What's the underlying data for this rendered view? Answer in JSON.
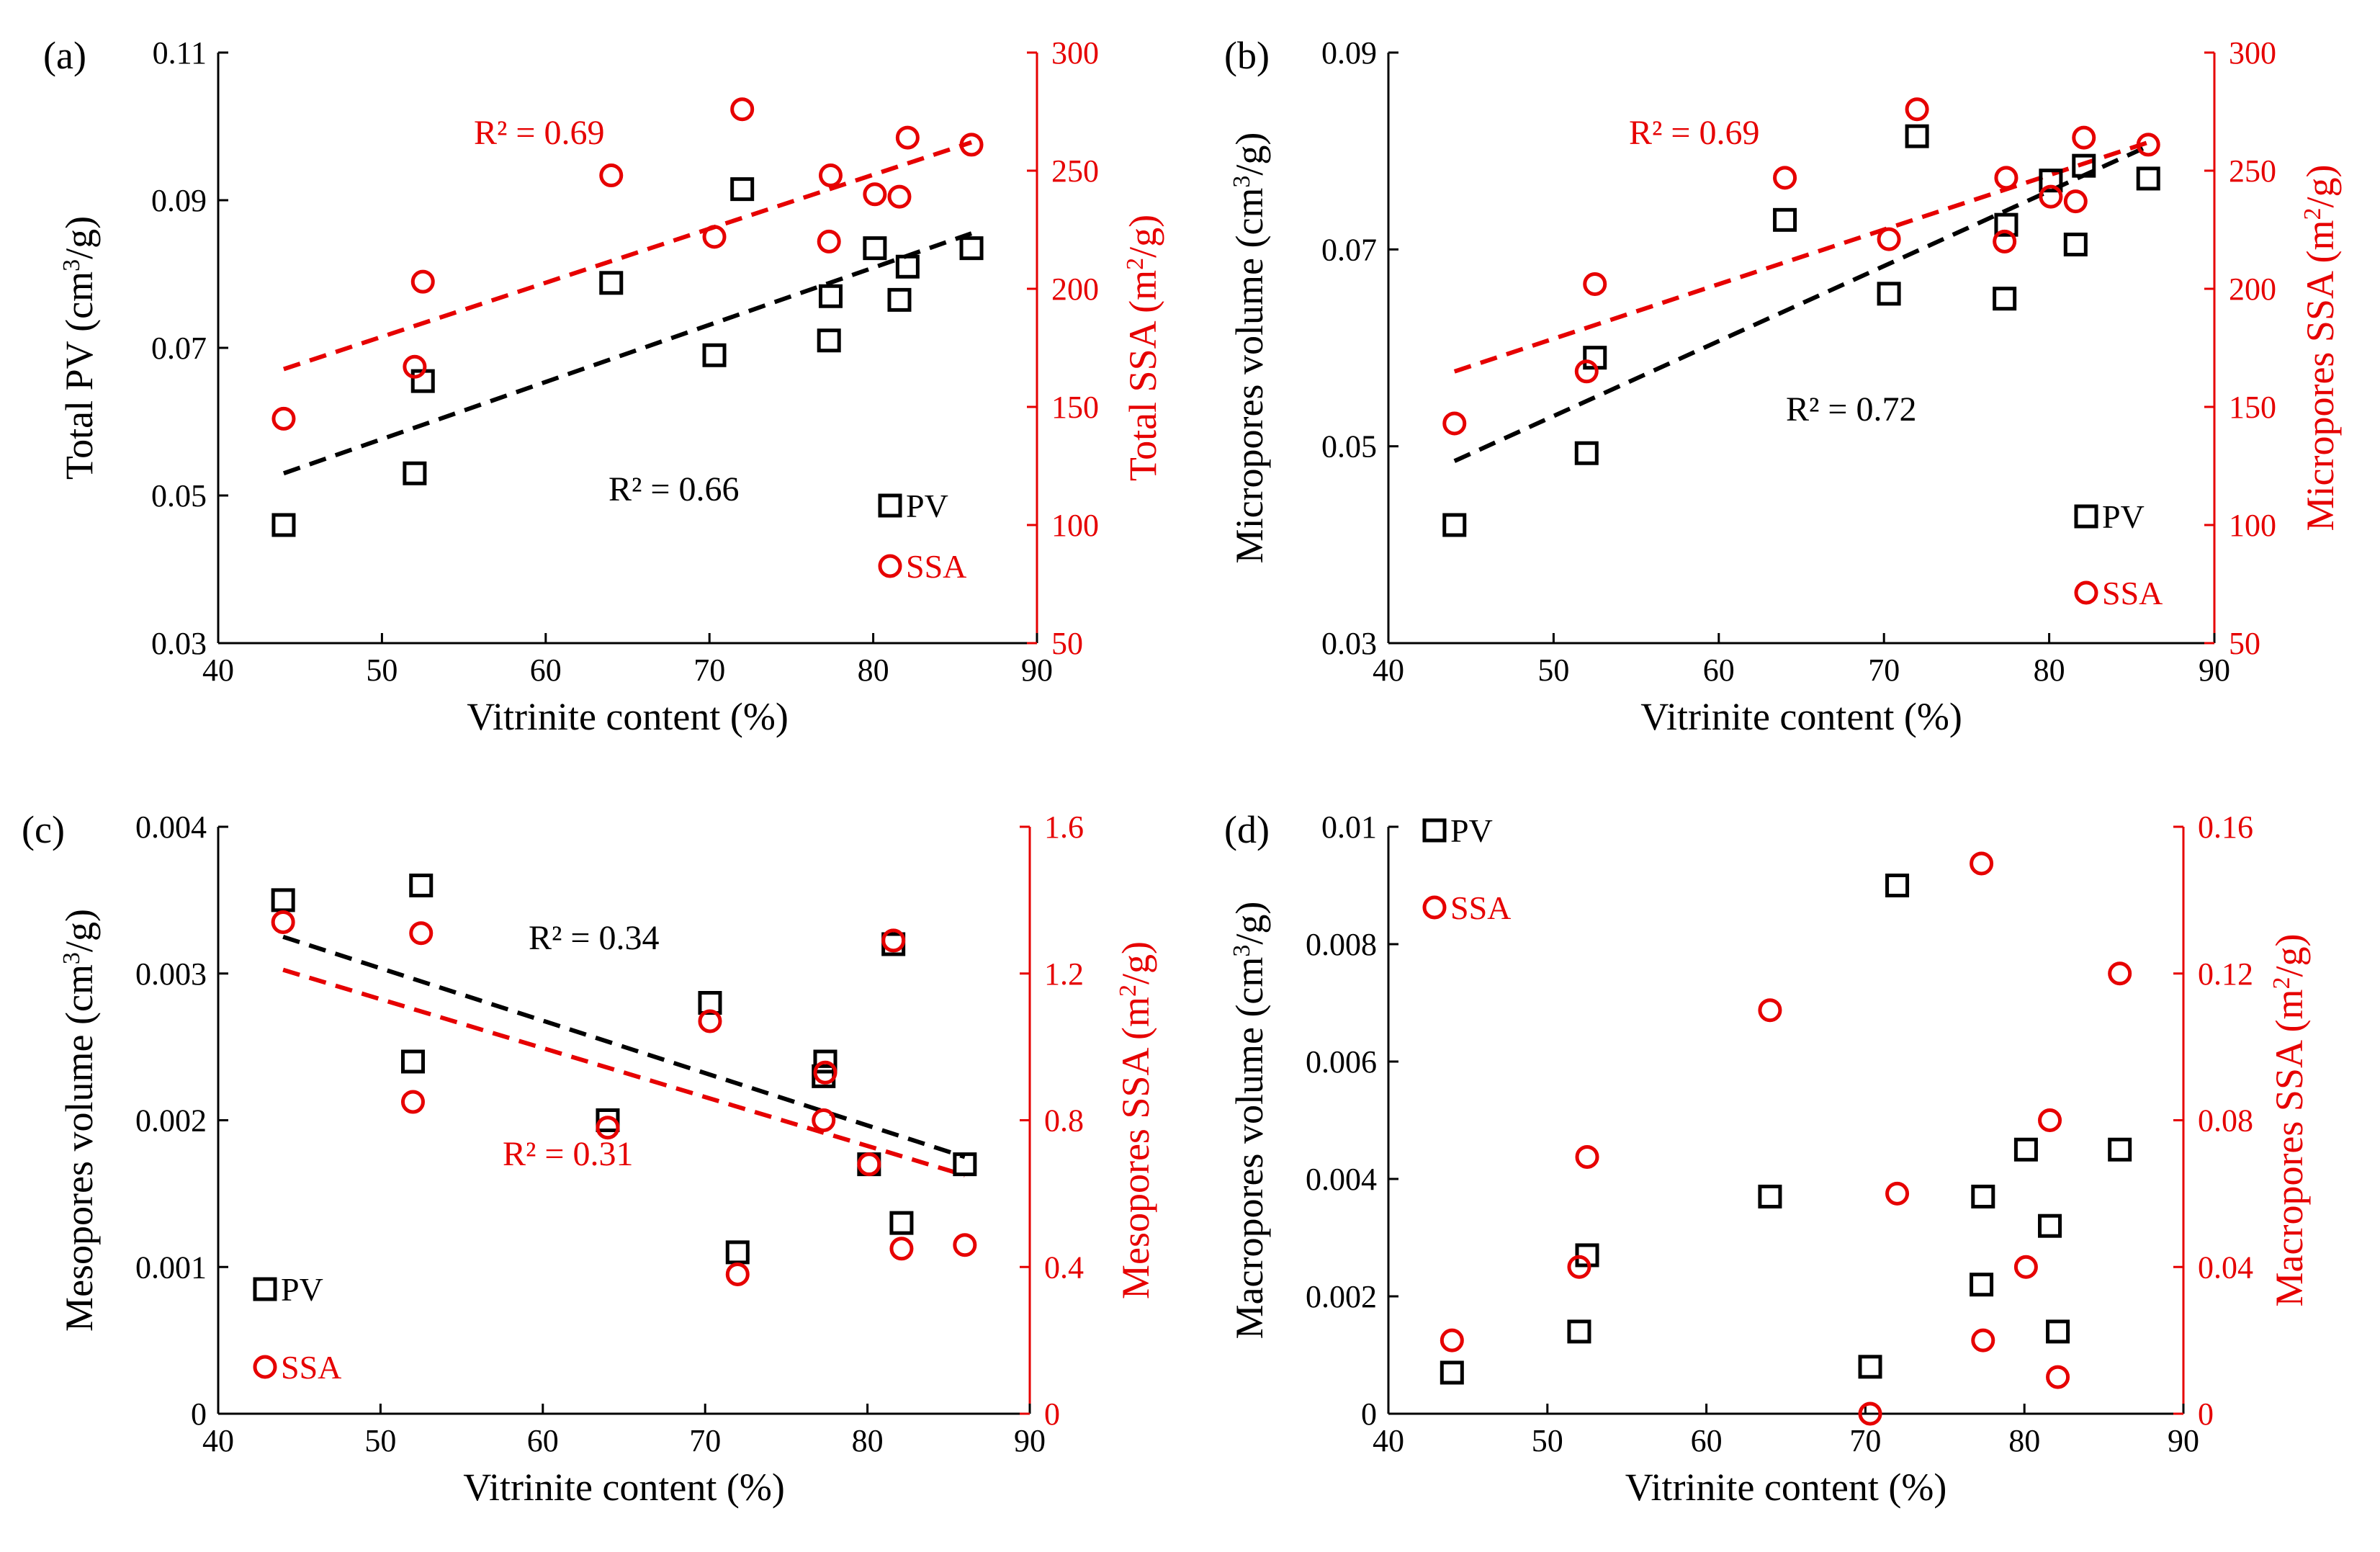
{
  "colors": {
    "pv": "#000000",
    "ssa": "#e60000",
    "axis": "#000000"
  },
  "chart_data": [
    {
      "type": "scatter",
      "panel_label": "(a)",
      "xlabel": "Vitrinite content (%)",
      "ylabel": "Total PV (cm³/g)",
      "ylabel_right": "Total SSA (m²/g)",
      "xlim": [
        40,
        90
      ],
      "ylim": [
        0.03,
        0.11
      ],
      "ylim_right": [
        50,
        300
      ],
      "x_ticks": [
        "40",
        "50",
        "60",
        "70",
        "80",
        "90"
      ],
      "y_ticks": [
        "0.03",
        "0.05",
        "0.07",
        "0.09",
        "0.11"
      ],
      "y_ticks_right": [
        "50",
        "100",
        "150",
        "200",
        "250",
        "300"
      ],
      "series": [
        {
          "name": "PV",
          "axis": "left",
          "marker": "square",
          "x": [
            44,
            52,
            52.5,
            64,
            70.3,
            72,
            77.3,
            77.4,
            80.1,
            81.6,
            82.1,
            86
          ],
          "y": [
            0.046,
            0.053,
            0.0655,
            0.0788,
            0.069,
            0.0915,
            0.071,
            0.077,
            0.0835,
            0.0765,
            0.081,
            0.0835
          ]
        },
        {
          "name": "SSA",
          "axis": "right",
          "marker": "circle",
          "x": [
            44,
            52,
            52.5,
            64,
            70.3,
            72,
            77.3,
            77.4,
            80.1,
            81.6,
            82.1,
            86
          ],
          "y": [
            145,
            167,
            203,
            248,
            222,
            276,
            220,
            248,
            240,
            239,
            264,
            261
          ]
        }
      ],
      "trendlines": [
        {
          "series": "PV",
          "axis": "left",
          "x": [
            44,
            86
          ],
          "y": [
            0.053,
            0.0855
          ],
          "r2_label": "R² = 0.66"
        },
        {
          "series": "SSA",
          "axis": "right",
          "x": [
            44,
            86
          ],
          "y": [
            166,
            262
          ],
          "r2_label": "R² = 0.69"
        }
      ],
      "legend": [
        "PV",
        "SSA"
      ],
      "legend_position": "lower-right"
    },
    {
      "type": "scatter",
      "panel_label": "(b)",
      "xlabel": "Vitrinite content (%)",
      "ylabel": "Micropores volume (cm³/g)",
      "ylabel_right": "Micropores SSA (m²/g)",
      "xlim": [
        40,
        90
      ],
      "ylim": [
        0.03,
        0.09
      ],
      "ylim_right": [
        50,
        300
      ],
      "x_ticks": [
        "40",
        "50",
        "60",
        "70",
        "80",
        "90"
      ],
      "y_ticks": [
        "0.03",
        "0.05",
        "0.07",
        "0.09"
      ],
      "y_ticks_right": [
        "50",
        "100",
        "150",
        "200",
        "250",
        "300"
      ],
      "series": [
        {
          "name": "PV",
          "axis": "left",
          "marker": "square",
          "x": [
            44,
            52,
            52.5,
            64,
            70.3,
            72,
            77.3,
            77.4,
            80.1,
            81.6,
            82.1,
            86
          ],
          "y": [
            0.042,
            0.0493,
            0.059,
            0.073,
            0.0655,
            0.0815,
            0.065,
            0.0725,
            0.077,
            0.0705,
            0.0785,
            0.0772
          ]
        },
        {
          "name": "SSA",
          "axis": "right",
          "marker": "circle",
          "x": [
            44,
            52,
            52.5,
            64,
            70.3,
            72,
            77.3,
            77.4,
            80.1,
            81.6,
            82.1,
            86
          ],
          "y": [
            143,
            165,
            202,
            247,
            221,
            276,
            220,
            247,
            239,
            237,
            264,
            261
          ]
        }
      ],
      "trendlines": [
        {
          "series": "PV",
          "axis": "left",
          "x": [
            44,
            86
          ],
          "y": [
            0.0485,
            0.0805
          ],
          "r2_label": "R² = 0.72"
        },
        {
          "series": "SSA",
          "axis": "right",
          "x": [
            44,
            86
          ],
          "y": [
            165,
            262
          ],
          "r2_label": "R² = 0.69"
        }
      ],
      "legend": [
        "PV",
        "SSA"
      ],
      "legend_position": "lower-right"
    },
    {
      "type": "scatter",
      "panel_label": "(c)",
      "xlabel": "Vitrinite content (%)",
      "ylabel": "Mesopores volume (cm³/g)",
      "ylabel_right": "Mesopores SSA (m²/g)",
      "xlim": [
        40,
        90
      ],
      "ylim": [
        0,
        0.004
      ],
      "ylim_right": [
        0,
        1.6
      ],
      "x_ticks": [
        "40",
        "50",
        "60",
        "70",
        "80",
        "90"
      ],
      "y_ticks": [
        "0",
        "0.001",
        "0.002",
        "0.003",
        "0.004"
      ],
      "y_ticks_right": [
        "0",
        "0.4",
        "0.8",
        "1.2",
        "1.6"
      ],
      "series": [
        {
          "name": "PV",
          "axis": "left",
          "marker": "square",
          "x": [
            44,
            52,
            52.5,
            64,
            70.3,
            72,
            77.3,
            77.4,
            80.1,
            81.6,
            82.1,
            86
          ],
          "y": [
            0.0035,
            0.0024,
            0.0036,
            0.002,
            0.0028,
            0.0011,
            0.0023,
            0.0024,
            0.0017,
            0.0032,
            0.0013,
            0.0017
          ]
        },
        {
          "name": "SSA",
          "axis": "right",
          "marker": "circle",
          "x": [
            44,
            52,
            52.5,
            64,
            70.3,
            72,
            77.3,
            77.4,
            80.1,
            81.6,
            82.1,
            86
          ],
          "y": [
            1.34,
            0.85,
            1.31,
            0.78,
            1.07,
            0.38,
            0.8,
            0.93,
            0.68,
            1.29,
            0.45,
            0.46
          ]
        }
      ],
      "trendlines": [
        {
          "series": "PV",
          "axis": "left",
          "x": [
            44,
            86
          ],
          "y": [
            0.00325,
            0.00175
          ],
          "r2_label": "R² = 0.34"
        },
        {
          "series": "SSA",
          "axis": "right",
          "x": [
            44,
            86
          ],
          "y": [
            1.21,
            0.65
          ],
          "r2_label": "R² = 0.31"
        }
      ],
      "legend": [
        "PV",
        "SSA"
      ],
      "legend_position": "lower-left"
    },
    {
      "type": "scatter",
      "panel_label": "(d)",
      "xlabel": "Vitrinite content (%)",
      "ylabel": "Macropores volume (cm³/g)",
      "ylabel_right": "Macropores SSA (m²/g)",
      "xlim": [
        40,
        90
      ],
      "ylim": [
        0,
        0.01
      ],
      "ylim_right": [
        0,
        0.16
      ],
      "x_ticks": [
        "40",
        "50",
        "60",
        "70",
        "80",
        "90"
      ],
      "y_ticks": [
        "0",
        "0.002",
        "0.004",
        "0.006",
        "0.008",
        "0.01"
      ],
      "y_ticks_right": [
        "0",
        "0.04",
        "0.08",
        "0.12",
        "0.16"
      ],
      "series": [
        {
          "name": "PV",
          "axis": "left",
          "marker": "square",
          "x": [
            44,
            52,
            52.5,
            64,
            70.3,
            72,
            77.3,
            77.4,
            80.1,
            81.6,
            82.1,
            86
          ],
          "y": [
            0.0007,
            0.0014,
            0.0027,
            0.0037,
            0.0008,
            0.009,
            0.0022,
            0.0037,
            0.0045,
            0.0032,
            0.0014,
            0.0045
          ]
        },
        {
          "name": "SSA",
          "axis": "right",
          "marker": "circle",
          "x": [
            44,
            52,
            52.5,
            64,
            70.3,
            72,
            77.3,
            77.4,
            80.1,
            81.6,
            82.1,
            86
          ],
          "y": [
            0.02,
            0.04,
            0.07,
            0.11,
            0,
            0.06,
            0.15,
            0.02,
            0.04,
            0.08,
            0.01,
            0.12
          ]
        }
      ],
      "trendlines": [],
      "legend": [
        "PV",
        "SSA"
      ],
      "legend_position": "top-left"
    }
  ]
}
